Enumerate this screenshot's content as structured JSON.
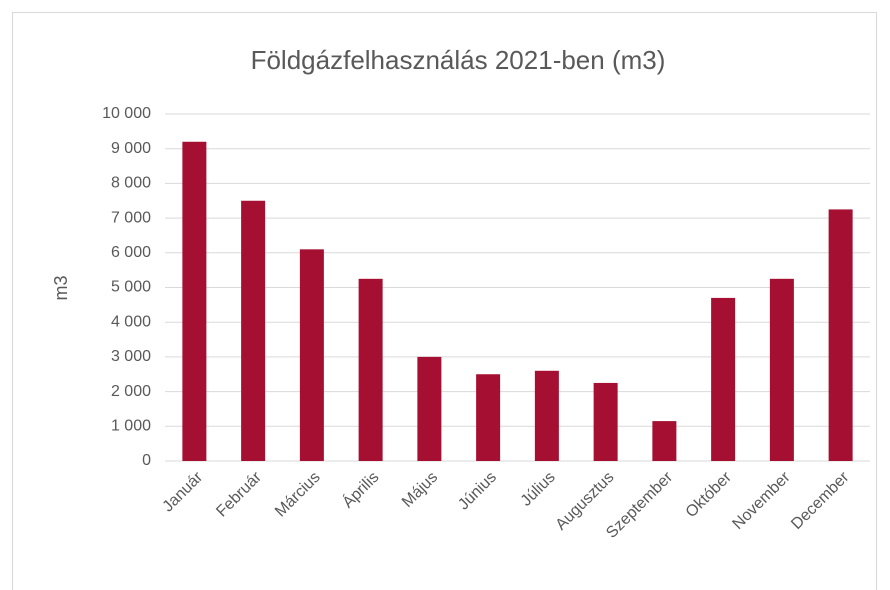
{
  "chart_data": {
    "type": "bar",
    "title": "Földgázfelhasználás 2021-ben (m3)",
    "ylabel": "m3",
    "categories": [
      "Január",
      "Február",
      "Március",
      "Április",
      "Május",
      "Június",
      "Július",
      "Augusztus",
      "Szeptember",
      "Október",
      "November",
      "December"
    ],
    "values": [
      9200,
      7500,
      6100,
      5250,
      3000,
      2500,
      2600,
      2250,
      1150,
      4700,
      5250,
      7250
    ],
    "color": "#a50f32",
    "ylim": [
      0,
      10000
    ],
    "yticks": [
      0,
      {
        "value": 1000,
        "label": "1 000"
      },
      {
        "value": 2000,
        "label": "2 000"
      },
      {
        "value": 3000,
        "label": "3 000"
      },
      {
        "value": 4000,
        "label": "4 000"
      },
      {
        "value": 5000,
        "label": "5 000"
      },
      {
        "value": 6000,
        "label": "6 000"
      },
      {
        "value": 7000,
        "label": "7 000"
      },
      {
        "value": 8000,
        "label": "8 000"
      },
      {
        "value": 9000,
        "label": "9 000"
      },
      {
        "value": 10000,
        "label": "10 000"
      }
    ],
    "grid": true
  }
}
